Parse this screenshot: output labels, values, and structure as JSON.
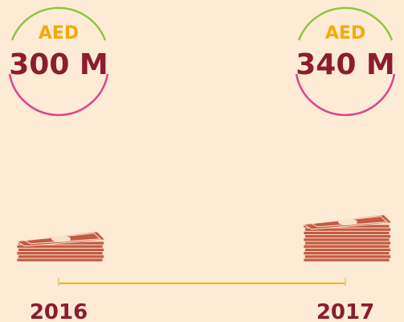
{
  "items": [
    {
      "currency": "AED",
      "amount": "300 M",
      "year": "2016"
    },
    {
      "currency": "AED",
      "amount": "340 M",
      "year": "2017"
    }
  ]
}
